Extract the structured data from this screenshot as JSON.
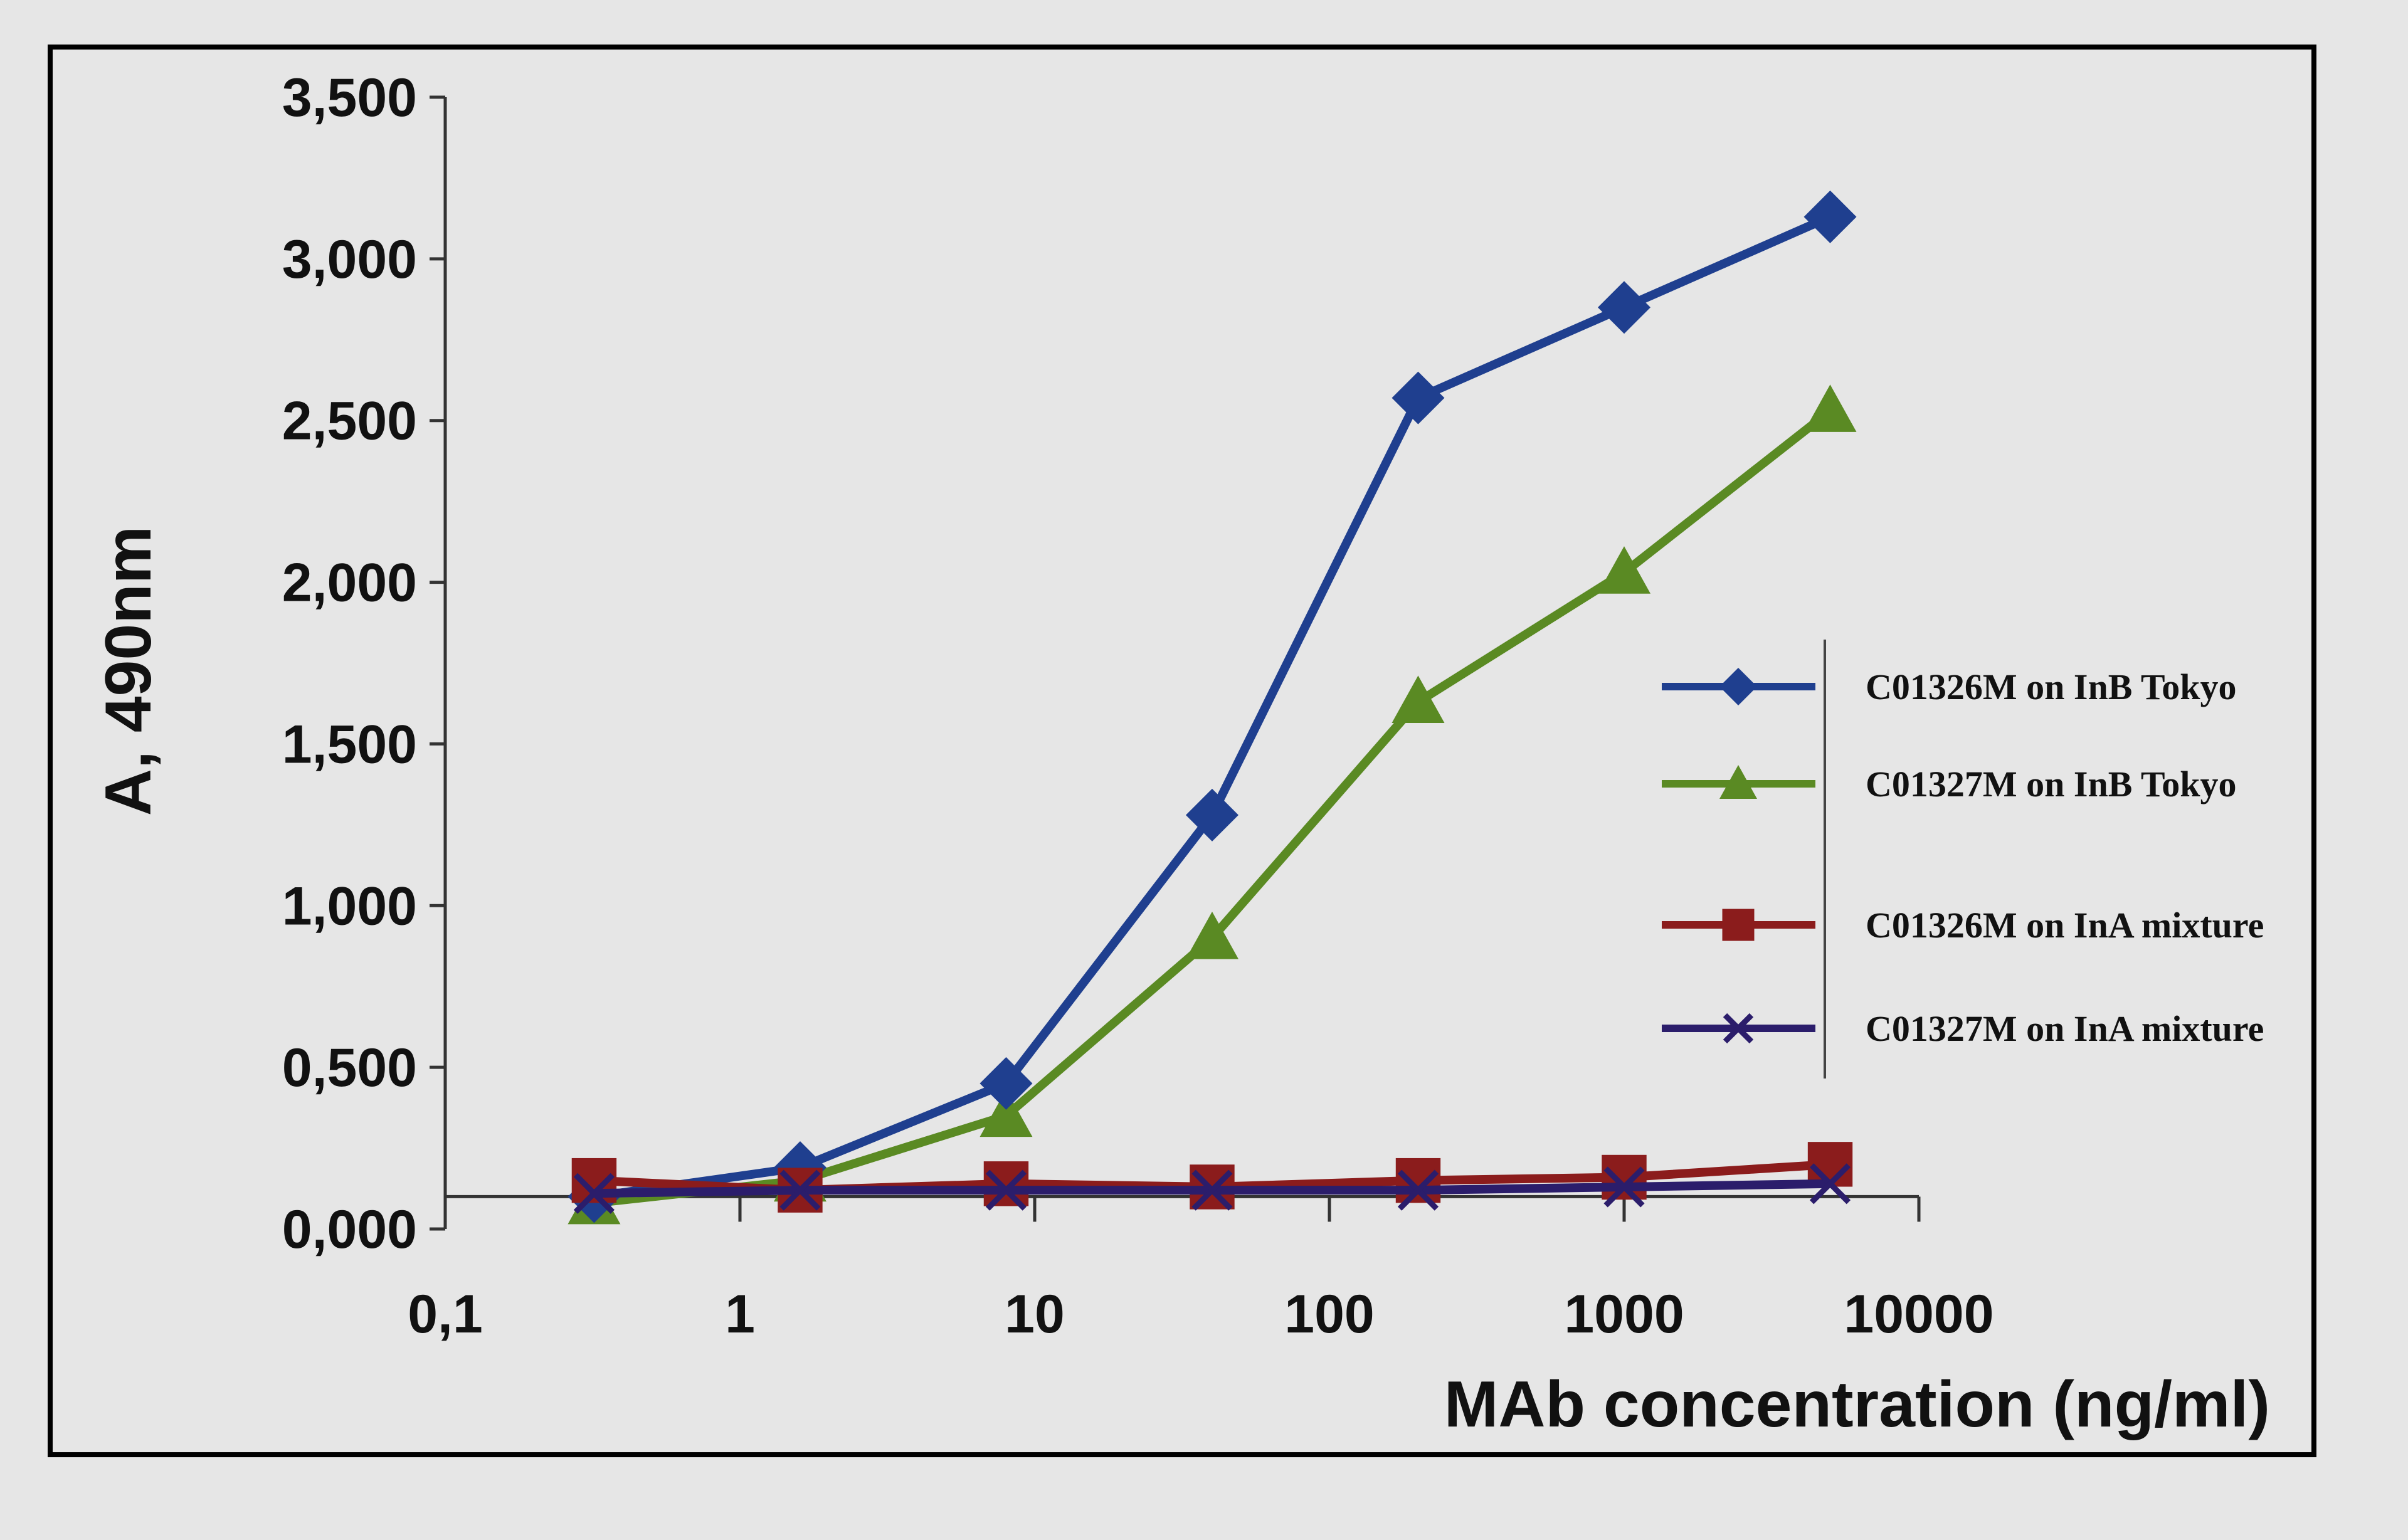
{
  "chart_data": {
    "type": "line",
    "xscale": "log",
    "xlabel": "MAb concentration (ng/ml)",
    "ylabel": "A, 490nm",
    "xlim": [
      0.1,
      10000
    ],
    "ylim": [
      0,
      3.5
    ],
    "x_ticks": [
      {
        "value": 0.1,
        "label": "0,1"
      },
      {
        "value": 1,
        "label": "1"
      },
      {
        "value": 10,
        "label": "10"
      },
      {
        "value": 100,
        "label": "100"
      },
      {
        "value": 1000,
        "label": "1000"
      },
      {
        "value": 10000,
        "label": "10000"
      }
    ],
    "y_ticks": [
      {
        "value": 0,
        "label": "0,000"
      },
      {
        "value": 0.5,
        "label": "0,500"
      },
      {
        "value": 1.0,
        "label": "1,000"
      },
      {
        "value": 1.5,
        "label": "1,500"
      },
      {
        "value": 2.0,
        "label": "2,000"
      },
      {
        "value": 2.5,
        "label": "2,500"
      },
      {
        "value": 3.0,
        "label": "3,000"
      },
      {
        "value": 3.5,
        "label": "3,500"
      }
    ],
    "x": [
      0.32,
      1.6,
      8,
      40,
      200,
      1000,
      5000
    ],
    "series": [
      {
        "name": "C01326M on InB Tokyo",
        "color": "#1f3f8f",
        "marker": "diamond",
        "values": [
          0.1,
          0.19,
          0.45,
          1.28,
          2.57,
          2.85,
          3.13
        ]
      },
      {
        "name": "C01327M on InB Tokyo",
        "color": "#5a8a23",
        "marker": "triangle",
        "values": [
          0.08,
          0.15,
          0.35,
          0.9,
          1.63,
          2.03,
          2.53
        ]
      },
      {
        "name": "C01326M on InA mixture",
        "color": "#8b1c1c",
        "marker": "square",
        "values": [
          0.15,
          0.12,
          0.14,
          0.13,
          0.15,
          0.16,
          0.2
        ]
      },
      {
        "name": "C01327M on InA mixture",
        "color": "#2b1d6b",
        "marker": "x",
        "values": [
          0.11,
          0.12,
          0.12,
          0.12,
          0.12,
          0.13,
          0.14
        ]
      }
    ],
    "legend_position": "right",
    "grid": false,
    "baseline_value": 0.1
  }
}
